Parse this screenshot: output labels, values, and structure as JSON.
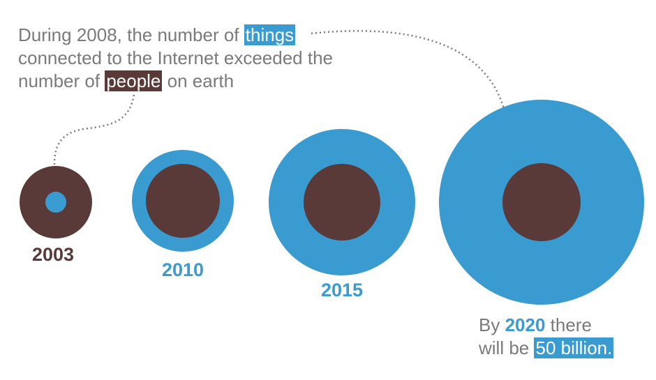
{
  "annotation": {
    "line1": "During 2008, the number of",
    "things": "things",
    "line2": "connected to the Internet exceeded the",
    "line3": "number of",
    "people": "people",
    "line3_end": "on earth"
  },
  "years": [
    "2003",
    "2010",
    "2015"
  ],
  "footer": {
    "by": "By",
    "year": "2020",
    "there": "there",
    "will_be": "will be",
    "amount": "50 billion."
  }
}
